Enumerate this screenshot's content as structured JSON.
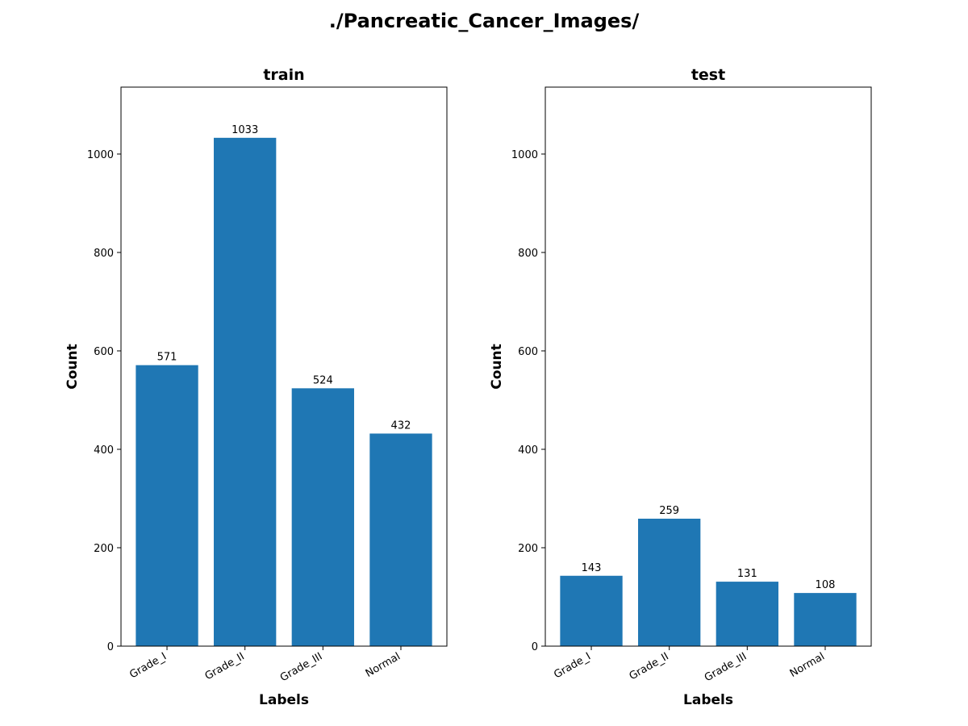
{
  "suptitle": "./Pancreatic_Cancer_Images/",
  "chart_data": [
    {
      "type": "bar",
      "title": "train",
      "xlabel": "Labels",
      "ylabel": "Count",
      "categories": [
        "Grade_I",
        "Grade_II",
        "Grade_III",
        "Normal"
      ],
      "values": [
        571,
        1033,
        524,
        432
      ],
      "ylim": [
        0,
        1136
      ],
      "yticks": [
        0,
        200,
        400,
        600,
        800,
        1000
      ],
      "bar_color": "#1f77b4",
      "grid": false
    },
    {
      "type": "bar",
      "title": "test",
      "xlabel": "Labels",
      "ylabel": "Count",
      "categories": [
        "Grade_I",
        "Grade_II",
        "Grade_III",
        "Normal"
      ],
      "values": [
        143,
        259,
        131,
        108
      ],
      "ylim": [
        0,
        1136
      ],
      "yticks": [
        0,
        200,
        400,
        600,
        800,
        1000
      ],
      "bar_color": "#1f77b4",
      "grid": false
    }
  ]
}
